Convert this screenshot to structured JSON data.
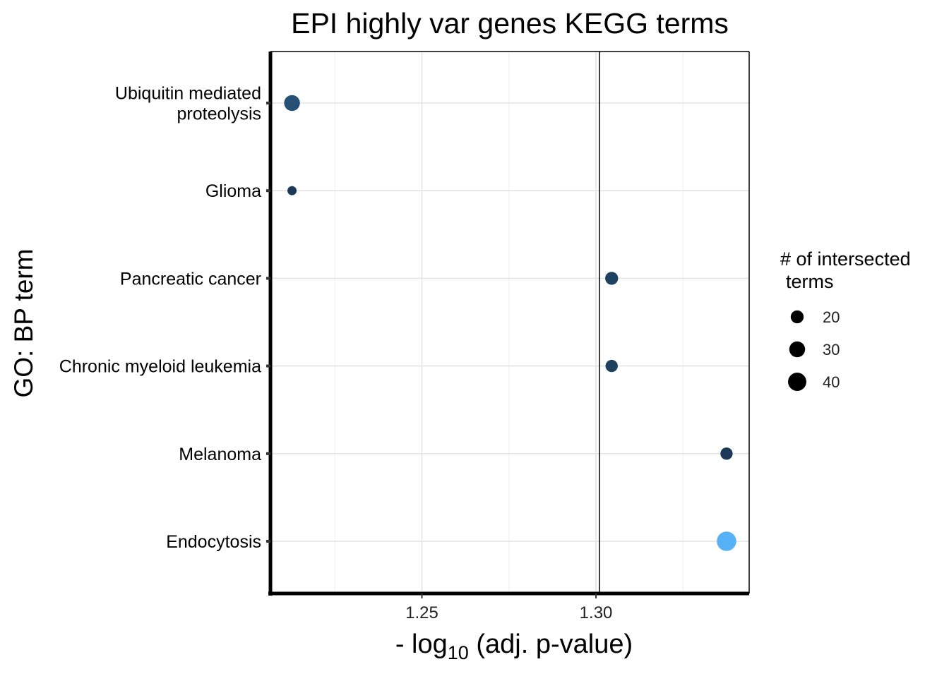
{
  "chart_data": {
    "type": "scatter",
    "title": "EPI highly var genes KEGG terms",
    "xlabel_prefix": "- log",
    "xlabel_subscript": "10",
    "xlabel_suffix": " (adj. p-value)",
    "ylabel": "GO: BP term",
    "xlim": [
      1.2065,
      1.344
    ],
    "x_ticks": [
      1.25,
      1.3
    ],
    "x_tick_labels": [
      "1.25",
      "1.30"
    ],
    "x_minor_gridlines": [
      1.225,
      1.275,
      1.325
    ],
    "reference_line_x": 1.301,
    "categories": [
      [
        "Ubiquitin mediated",
        "proteolysis"
      ],
      [
        "Glioma"
      ],
      [
        "Pancreatic cancer"
      ],
      [
        "Chronic myeloid leukemia"
      ],
      [
        "Melanoma"
      ],
      [
        "Endocytosis"
      ]
    ],
    "points": [
      {
        "x": 1.2127,
        "size": 30,
        "color": "#275077"
      },
      {
        "x": 1.2127,
        "size": 10,
        "color": "#1c3a58"
      },
      {
        "x": 1.3045,
        "size": 20,
        "color": "#1f4160"
      },
      {
        "x": 1.3045,
        "size": 18,
        "color": "#1f4160"
      },
      {
        "x": 1.3375,
        "size": 18,
        "color": "#1c3a58"
      },
      {
        "x": 1.3375,
        "size": 45,
        "color": "#56b1f7"
      }
    ],
    "legend": {
      "title_line1": "# of intersected",
      "title_line2": "terms",
      "entries": [
        {
          "label": "20",
          "size": 20
        },
        {
          "label": "30",
          "size": 30
        },
        {
          "label": "40",
          "size": 40
        }
      ],
      "position": "right"
    },
    "grid": true
  }
}
